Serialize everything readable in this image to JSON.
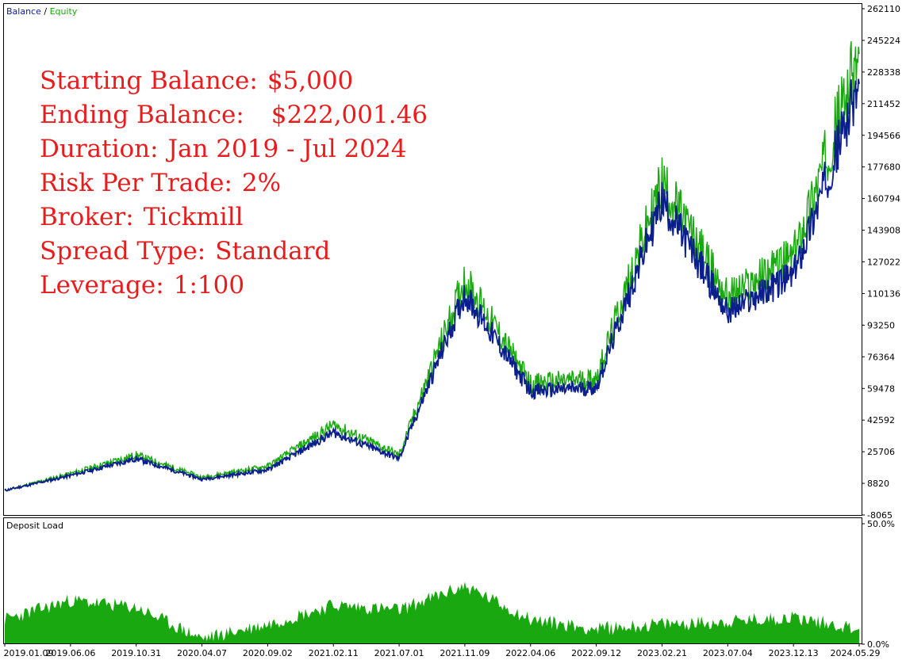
{
  "legend": {
    "balance": "Balance",
    "separator": " / ",
    "equity": "Equity"
  },
  "colors": {
    "balance": "#0a1e8c",
    "equity": "#19a80f",
    "deposit_load": "#19a80f",
    "stats_text": "#e81c1c",
    "frame": "#000000"
  },
  "stats": [
    {
      "label": "Starting Balance:",
      "value": "$5,000"
    },
    {
      "label": "Ending Balance:",
      "value": "$222,001.46"
    },
    {
      "label": "Duration:",
      "value": "Jan 2019 - Jul 2024"
    },
    {
      "label": "Risk Per Trade:",
      "value": "2%"
    },
    {
      "label": "Broker:",
      "value": "Tickmill"
    },
    {
      "label": "Spread Type:",
      "value": "Standard"
    },
    {
      "label": "Leverage:",
      "value": "1:100"
    }
  ],
  "chart_data": [
    {
      "type": "line",
      "title": "Balance / Equity",
      "ylim": [
        -8065,
        262110
      ],
      "y_ticks": [
        "262110",
        "245224",
        "228338",
        "211452",
        "194566",
        "177680",
        "160794",
        "143908",
        "127022",
        "110136",
        "93250",
        "76364",
        "59478",
        "42592",
        "25706",
        "8820",
        "-8065"
      ],
      "x": [
        "2019.01.09",
        "2019.06.06",
        "2019.10.31",
        "2020.04.07",
        "2020.09.02",
        "2021.02.11",
        "2021.07.01",
        "2021.11.09",
        "2022.04.06",
        "2022.09.12",
        "2023.02.21",
        "2023.07.04",
        "2023.12.13",
        "2024.05.29"
      ],
      "series": [
        {
          "name": "Balance",
          "values": [
            5000,
            13000,
            22000,
            11000,
            16000,
            36000,
            22000,
            110000,
            58000,
            60000,
            160000,
            100000,
            120000,
            222001
          ]
        },
        {
          "name": "Equity",
          "values": [
            5000,
            14000,
            24000,
            12000,
            18000,
            40000,
            24000,
            118000,
            62000,
            65000,
            170000,
            108000,
            130000,
            238000
          ]
        }
      ]
    },
    {
      "type": "area",
      "title": "Deposit Load",
      "ylim": [
        0,
        50
      ],
      "y_ticks": [
        "50.0%",
        "0.0%"
      ],
      "x": [
        "2019.01.09",
        "2019.06.06",
        "2019.10.31",
        "2020.04.07",
        "2020.09.02",
        "2021.02.11",
        "2021.07.01",
        "2021.11.09",
        "2022.04.06",
        "2022.09.12",
        "2023.02.21",
        "2023.07.04",
        "2023.12.13",
        "2024.05.29"
      ],
      "series": [
        {
          "name": "Deposit Load",
          "values": [
            10,
            18,
            15,
            2,
            8,
            16,
            14,
            24,
            10,
            6,
            8,
            9,
            11,
            6
          ]
        }
      ]
    }
  ]
}
